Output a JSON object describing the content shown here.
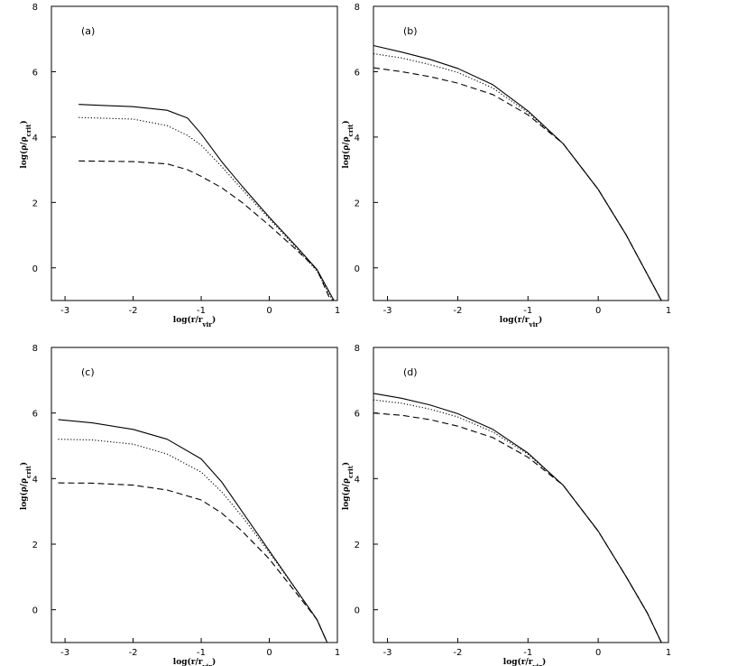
{
  "chart_data": [
    {
      "type": "line",
      "panel_label": "(a)",
      "xlabel": "log(r/r",
      "xlabel_sub": "vir",
      "xlabel_suffix": ")",
      "ylabel": "log(ρ/ρ",
      "ylabel_sub": "crit",
      "ylabel_suffix": ")",
      "xlim": [
        -3.2,
        1.0
      ],
      "ylim": [
        -1.0,
        8.0
      ],
      "xticks": [
        -3,
        -2,
        -1,
        0,
        1
      ],
      "yticks": [
        0,
        2,
        4,
        6,
        8
      ],
      "series": [
        {
          "style": "solid",
          "points": [
            [
              -2.8,
              5.0
            ],
            [
              -2.0,
              4.93
            ],
            [
              -1.5,
              4.82
            ],
            [
              -1.2,
              4.58
            ],
            [
              -1.0,
              4.1
            ],
            [
              -0.7,
              3.25
            ],
            [
              -0.4,
              2.5
            ],
            [
              0.0,
              1.55
            ],
            [
              0.4,
              0.65
            ],
            [
              0.7,
              -0.05
            ],
            [
              0.95,
              -1.0
            ]
          ]
        },
        {
          "style": "dotted",
          "points": [
            [
              -2.8,
              4.6
            ],
            [
              -2.0,
              4.55
            ],
            [
              -1.5,
              4.35
            ],
            [
              -1.2,
              4.05
            ],
            [
              -1.0,
              3.75
            ],
            [
              -0.7,
              3.1
            ],
            [
              -0.4,
              2.4
            ],
            [
              0.0,
              1.5
            ],
            [
              0.4,
              0.6
            ],
            [
              0.7,
              -0.1
            ],
            [
              0.93,
              -1.0
            ]
          ]
        },
        {
          "style": "dashed",
          "points": [
            [
              -2.8,
              3.27
            ],
            [
              -2.0,
              3.25
            ],
            [
              -1.5,
              3.18
            ],
            [
              -1.2,
              3.0
            ],
            [
              -1.0,
              2.8
            ],
            [
              -0.7,
              2.45
            ],
            [
              -0.4,
              2.0
            ],
            [
              0.0,
              1.3
            ],
            [
              0.4,
              0.55
            ],
            [
              0.7,
              -0.05
            ],
            [
              0.9,
              -1.0
            ]
          ]
        }
      ]
    },
    {
      "type": "line",
      "panel_label": "(b)",
      "xlabel": "log(r/r",
      "xlabel_sub": "vir",
      "xlabel_suffix": ")",
      "ylabel": "log(ρ/ρ",
      "ylabel_sub": "crit",
      "ylabel_suffix": ")",
      "xlim": [
        -3.2,
        1.0
      ],
      "ylim": [
        -1.0,
        8.0
      ],
      "xticks": [
        -3,
        -2,
        -1,
        0,
        1
      ],
      "yticks": [
        0,
        2,
        4,
        6,
        8
      ],
      "series": [
        {
          "style": "solid",
          "points": [
            [
              -3.2,
              6.8
            ],
            [
              -2.8,
              6.6
            ],
            [
              -2.4,
              6.38
            ],
            [
              -2.0,
              6.1
            ],
            [
              -1.5,
              5.6
            ],
            [
              -1.0,
              4.8
            ],
            [
              -0.5,
              3.8
            ],
            [
              0.0,
              2.4
            ],
            [
              0.4,
              1.0
            ],
            [
              0.7,
              -0.2
            ],
            [
              0.9,
              -1.0
            ]
          ]
        },
        {
          "style": "dotted",
          "points": [
            [
              -3.2,
              6.55
            ],
            [
              -2.8,
              6.42
            ],
            [
              -2.4,
              6.22
            ],
            [
              -2.0,
              5.98
            ],
            [
              -1.5,
              5.5
            ],
            [
              -1.0,
              4.75
            ],
            [
              -0.5,
              3.8
            ],
            [
              0.0,
              2.4
            ],
            [
              0.4,
              1.0
            ],
            [
              0.7,
              -0.2
            ],
            [
              0.9,
              -1.0
            ]
          ]
        },
        {
          "style": "dashed",
          "points": [
            [
              -3.2,
              6.12
            ],
            [
              -2.8,
              6.0
            ],
            [
              -2.4,
              5.85
            ],
            [
              -2.0,
              5.65
            ],
            [
              -1.5,
              5.3
            ],
            [
              -1.0,
              4.68
            ],
            [
              -0.5,
              3.8
            ],
            [
              0.0,
              2.4
            ],
            [
              0.4,
              1.0
            ],
            [
              0.7,
              -0.2
            ],
            [
              0.9,
              -1.0
            ]
          ]
        }
      ]
    },
    {
      "type": "line",
      "panel_label": "(c)",
      "xlabel": "log(r/r",
      "xlabel_sub": "vir",
      "xlabel_suffix": ")",
      "ylabel": "log(ρ/ρ",
      "ylabel_sub": "crit",
      "ylabel_suffix": ")",
      "xlim": [
        -3.2,
        1.0
      ],
      "ylim": [
        -1.0,
        8.0
      ],
      "xticks": [
        -3,
        -2,
        -1,
        0,
        1
      ],
      "yticks": [
        0,
        2,
        4,
        6,
        8
      ],
      "series": [
        {
          "style": "solid",
          "points": [
            [
              -3.1,
              5.8
            ],
            [
              -2.6,
              5.7
            ],
            [
              -2.0,
              5.5
            ],
            [
              -1.5,
              5.2
            ],
            [
              -1.0,
              4.6
            ],
            [
              -0.7,
              3.9
            ],
            [
              -0.4,
              3.0
            ],
            [
              0.0,
              1.8
            ],
            [
              0.4,
              0.6
            ],
            [
              0.7,
              -0.3
            ],
            [
              0.85,
              -1.0
            ]
          ]
        },
        {
          "style": "dotted",
          "points": [
            [
              -3.1,
              5.2
            ],
            [
              -2.6,
              5.18
            ],
            [
              -2.0,
              5.05
            ],
            [
              -1.5,
              4.75
            ],
            [
              -1.0,
              4.2
            ],
            [
              -0.7,
              3.6
            ],
            [
              -0.4,
              2.85
            ],
            [
              0.0,
              1.75
            ],
            [
              0.4,
              0.6
            ],
            [
              0.7,
              -0.3
            ],
            [
              0.85,
              -1.0
            ]
          ]
        },
        {
          "style": "dashed",
          "points": [
            [
              -3.1,
              3.87
            ],
            [
              -2.6,
              3.86
            ],
            [
              -2.0,
              3.8
            ],
            [
              -1.5,
              3.65
            ],
            [
              -1.0,
              3.35
            ],
            [
              -0.7,
              2.95
            ],
            [
              -0.4,
              2.4
            ],
            [
              0.0,
              1.55
            ],
            [
              0.4,
              0.5
            ],
            [
              0.7,
              -0.3
            ],
            [
              0.85,
              -1.0
            ]
          ]
        }
      ]
    },
    {
      "type": "line",
      "panel_label": "(d)",
      "xlabel": "log(r/r",
      "xlabel_sub": "vir",
      "xlabel_suffix": ")",
      "ylabel": "log(ρ/ρ",
      "ylabel_sub": "crit",
      "ylabel_suffix": ")",
      "xlim": [
        -3.2,
        1.0
      ],
      "ylim": [
        -1.0,
        8.0
      ],
      "xticks": [
        -3,
        -2,
        -1,
        0,
        1
      ],
      "yticks": [
        0,
        2,
        4,
        6,
        8
      ],
      "series": [
        {
          "style": "solid",
          "points": [
            [
              -3.2,
              6.6
            ],
            [
              -2.8,
              6.45
            ],
            [
              -2.4,
              6.25
            ],
            [
              -2.0,
              5.98
            ],
            [
              -1.5,
              5.5
            ],
            [
              -1.0,
              4.78
            ],
            [
              -0.5,
              3.8
            ],
            [
              0.0,
              2.4
            ],
            [
              0.4,
              1.0
            ],
            [
              0.7,
              -0.1
            ],
            [
              0.9,
              -1.0
            ]
          ]
        },
        {
          "style": "dotted",
          "points": [
            [
              -3.2,
              6.4
            ],
            [
              -2.8,
              6.3
            ],
            [
              -2.4,
              6.12
            ],
            [
              -2.0,
              5.88
            ],
            [
              -1.5,
              5.42
            ],
            [
              -1.0,
              4.74
            ],
            [
              -0.5,
              3.8
            ],
            [
              0.0,
              2.4
            ],
            [
              0.4,
              1.0
            ],
            [
              0.7,
              -0.1
            ],
            [
              0.9,
              -1.0
            ]
          ]
        },
        {
          "style": "dashed",
          "points": [
            [
              -3.2,
              6.0
            ],
            [
              -2.8,
              5.93
            ],
            [
              -2.4,
              5.8
            ],
            [
              -2.0,
              5.6
            ],
            [
              -1.5,
              5.25
            ],
            [
              -1.0,
              4.65
            ],
            [
              -0.5,
              3.8
            ],
            [
              0.0,
              2.4
            ],
            [
              0.4,
              1.0
            ],
            [
              0.7,
              -0.1
            ],
            [
              0.9,
              -1.0
            ]
          ]
        }
      ]
    }
  ]
}
